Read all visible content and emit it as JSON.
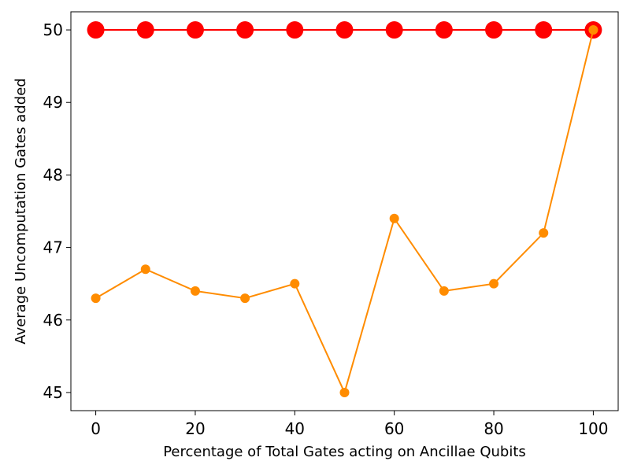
{
  "chart_data": {
    "type": "line",
    "title": "",
    "xlabel": "Percentage of Total Gates acting on Ancillae Qubits",
    "ylabel": "Average Uncomputation Gates added",
    "xlim": [
      -5,
      105
    ],
    "ylim": [
      44.75,
      50.25
    ],
    "xticks": [
      0,
      20,
      40,
      60,
      80,
      100
    ],
    "yticks": [
      45,
      46,
      47,
      48,
      49,
      50
    ],
    "grid": false,
    "legend": "none",
    "x": [
      0,
      10,
      20,
      30,
      40,
      50,
      60,
      70,
      80,
      90,
      100
    ],
    "series": [
      {
        "color": "#ff0000",
        "marker": "large-circle",
        "values": [
          50,
          50,
          50,
          50,
          50,
          50,
          50,
          50,
          50,
          50,
          50
        ]
      },
      {
        "color": "#ff8c00",
        "marker": "small-circle",
        "values": [
          46.3,
          46.7,
          46.4,
          46.3,
          46.5,
          45.0,
          47.4,
          46.4,
          46.5,
          47.2,
          50.0
        ]
      }
    ]
  }
}
